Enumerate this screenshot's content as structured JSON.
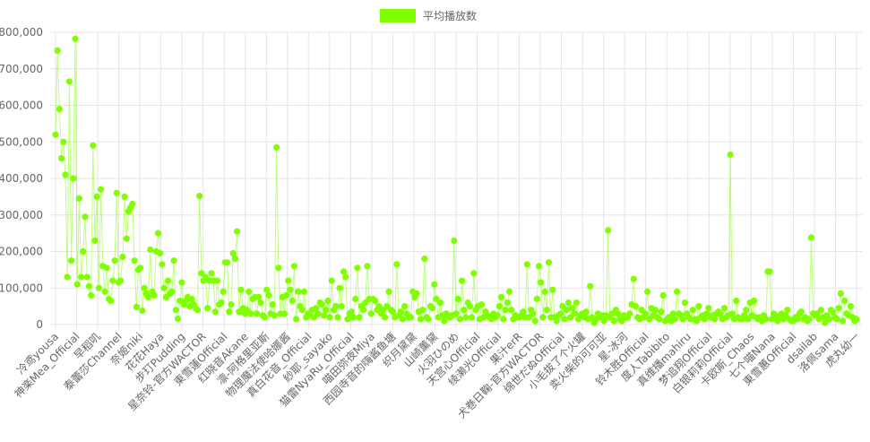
{
  "legend": {
    "label": "平均播放数",
    "color": "#7fff00"
  },
  "colors": {
    "point": "#7fff00",
    "line": "rgba(127,255,0,0.5)",
    "grid": "#e5e5e5",
    "text": "#666666"
  },
  "chart_data": {
    "type": "line",
    "series": [
      {
        "name": "平均播放数",
        "values": [
          520000,
          750000,
          590000,
          455000,
          500000,
          410000,
          130000,
          665000,
          175000,
          400000,
          782000,
          110000,
          345000,
          130000,
          200000,
          295000,
          130000,
          105000,
          80000,
          490000,
          230000,
          350000,
          100000,
          370000,
          160000,
          90000,
          155000,
          70000,
          65000,
          120000,
          175000,
          360000,
          115000,
          120000,
          185000,
          350000,
          235000,
          310000,
          320000,
          330000,
          175000,
          48000,
          150000,
          155000,
          38000,
          100000,
          85000,
          75000,
          205000,
          90000,
          80000,
          200000,
          250000,
          195000,
          165000,
          100000,
          75000,
          120000,
          85000,
          90000,
          175000,
          40000,
          16000,
          65000,
          115000,
          55000,
          65000,
          75000,
          50000,
          70000,
          55000,
          45000,
          40000,
          352000,
          140000,
          120000,
          130000,
          45000,
          120000,
          140000,
          120000,
          35000,
          120000,
          55000,
          60000,
          90000,
          170000,
          170000,
          35000,
          55000,
          195000,
          180000,
          255000,
          35000,
          95000,
          45000,
          30000,
          40000,
          90000,
          30000,
          70000,
          75000,
          30000,
          75000,
          60000,
          25000,
          20000,
          95000,
          80000,
          30000,
          55000,
          25000,
          485000,
          155000,
          30000,
          75000,
          30000,
          80000,
          120000,
          95000,
          65000,
          160000,
          15000,
          90000,
          50000,
          40000,
          90000,
          20000,
          30000,
          25000,
          40000,
          20000,
          45000,
          30000,
          60000,
          55000,
          25000,
          40000,
          65000,
          20000,
          120000,
          40000,
          50000,
          20000,
          100000,
          50000,
          145000,
          130000,
          15000,
          30000,
          35000,
          20000,
          70000,
          155000,
          20000,
          50000,
          40000,
          60000,
          160000,
          70000,
          30000,
          70000,
          65000,
          40000,
          50000,
          30000,
          40000,
          20000,
          50000,
          90000,
          40000,
          35000,
          20000,
          165000,
          25000,
          35000,
          15000,
          50000,
          30000,
          20000,
          20000,
          90000,
          75000,
          85000,
          35000,
          15000,
          40000,
          180000,
          20000,
          15000,
          50000,
          45000,
          110000,
          70000,
          20000,
          60000,
          25000,
          10000,
          30000,
          25000,
          20000,
          25000,
          230000,
          30000,
          70000,
          15000,
          120000,
          40000,
          20000,
          60000,
          50000,
          20000,
          140000,
          40000,
          50000,
          15000,
          55000,
          20000,
          35000,
          25000,
          20000,
          15000,
          30000,
          20000,
          25000,
          50000,
          75000,
          15000,
          40000,
          60000,
          90000,
          40000,
          15000,
          25000,
          20000,
          20000,
          25000,
          35000,
          20000,
          165000,
          20000,
          40000,
          30000,
          10000,
          70000,
          160000,
          115000,
          20000,
          90000,
          40000,
          170000,
          20000,
          95000,
          20000,
          10000,
          25000,
          30000,
          50000,
          15000,
          40000,
          60000,
          20000,
          45000,
          30000,
          60000,
          15000,
          25000,
          30000,
          20000,
          35000,
          15000,
          105000,
          20000,
          5000,
          15000,
          30000,
          20000,
          25000,
          10000,
          25000,
          258000,
          20000,
          30000,
          10000,
          40000,
          30000,
          15000,
          10000,
          25000,
          20000,
          20000,
          30000,
          55000,
          125000,
          50000,
          20000,
          15000,
          40000,
          20000,
          30000,
          90000,
          15000,
          45000,
          25000,
          40000,
          20000,
          15000,
          35000,
          80000,
          10000,
          15000,
          20000,
          10000,
          30000,
          15000,
          90000,
          30000,
          25000,
          15000,
          60000,
          30000,
          20000,
          15000,
          40000,
          15000,
          10000,
          50000,
          20000,
          25000,
          15000,
          30000,
          45000,
          20000,
          25000,
          15000,
          30000,
          35000,
          30000,
          15000,
          45000,
          20000,
          25000,
          465000,
          30000,
          15000,
          65000,
          20000,
          15000,
          15000,
          25000,
          40000,
          15000,
          60000,
          25000,
          65000,
          20000,
          15000,
          20000,
          10000,
          25000,
          15000,
          145000,
          145000,
          15000,
          30000,
          25000,
          10000,
          20000,
          30000,
          15000,
          25000,
          40000,
          15000,
          10000,
          10000,
          20000,
          15000,
          30000,
          35000,
          15000,
          20000,
          10000,
          15000,
          238000,
          30000,
          25000,
          30000,
          15000,
          40000,
          20000,
          5000,
          25000,
          15000,
          40000,
          35000,
          20000,
          15000,
          45000,
          85000,
          10000,
          65000,
          30000,
          25000,
          50000,
          20000,
          10000,
          15000
        ]
      }
    ],
    "x_tick_labels": [
      "冷鸢yousa",
      "神楽Mea_Official",
      "早稻叽",
      "泰蕾莎Channel",
      "奈姬niki",
      "花花Haya",
      "步玎Pudding",
      "星奈铃-官方WACTOR",
      "東雪蓮Official",
      "红晓音Akane",
      "凛-阿格里亚斯",
      "物理魔法使哈娜酱",
      "真白花音_Official",
      "紗耶_sayako",
      "猫雷NyaRu_Official",
      "喵田弥夜Miya",
      "西园寺音的嗨酱鱼塘",
      "织月黛黛",
      "山崎薰黛",
      "火羽ひのめ",
      "天宫心Official",
      "绫濑光Official",
      "果汁erR",
      "犬巻日鞠-官方WACTOR",
      "绵世だぬOfficial",
      "小毛拔了个火罐",
      "卖火柴的可可亚",
      "星-冰河",
      "铃木胜Official",
      "度人Tabibito",
      "真维播mahiru",
      "梦追翔Official",
      "白银莉莉Official",
      "卡欧斯_Chaos",
      "七个喵Nana",
      "東雪蕙Official",
      "dsailab",
      "洛佩sama",
      "虎丸幼一"
    ],
    "y_tick_labels": [
      "0",
      "100,000",
      "200,000",
      "300,000",
      "400,000",
      "500,000",
      "600,000",
      "700,000",
      "800,000"
    ],
    "ylim": [
      0,
      800000
    ],
    "grid": true,
    "legend_position": "top-center"
  }
}
